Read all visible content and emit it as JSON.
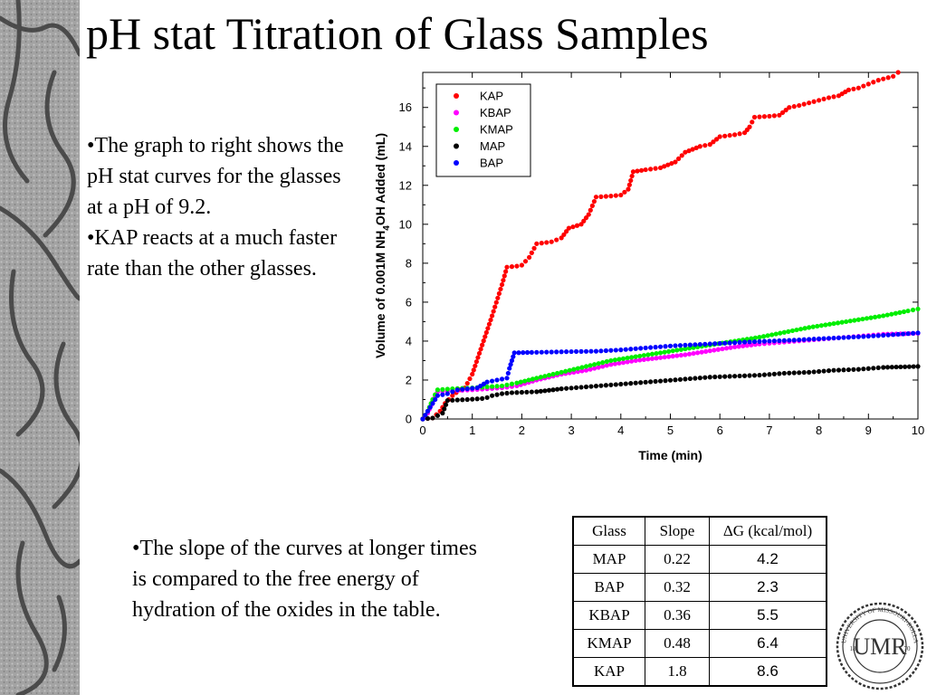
{
  "title": "pH stat Titration of Glass Samples",
  "bullets_left": [
    "The graph to right shows the pH stat curves for the glasses at a pH of 9.2.",
    "KAP reacts at a much faster rate than the other glasses."
  ],
  "bullet_bottom": "The slope of the curves at longer times is compared to the free energy of hydration of the oxides in the table.",
  "table": {
    "headers": [
      "Glass",
      "Slope",
      "ΔG (kcal/mol)"
    ],
    "rows": [
      [
        "MAP",
        "0.22",
        "4.2"
      ],
      [
        "BAP",
        "0.32",
        "2.3"
      ],
      [
        "KBAP",
        "0.36",
        "5.5"
      ],
      [
        "KMAP",
        "0.48",
        "6.4"
      ],
      [
        "KAP",
        "1.8",
        "8.6"
      ]
    ]
  },
  "chart_data": {
    "type": "scatter",
    "xlabel": "Time (min)",
    "ylabel_parts": [
      "Volume of 0.001M NH",
      "4",
      "OH Added (mL)"
    ],
    "xlim": [
      0,
      10
    ],
    "ylim": [
      0,
      17.8
    ],
    "xticks": [
      0,
      1,
      2,
      3,
      4,
      5,
      6,
      7,
      8,
      9,
      10
    ],
    "yticks": [
      0,
      2,
      4,
      6,
      8,
      10,
      12,
      14,
      16
    ],
    "grid": false,
    "legend_position": "top-left",
    "series": [
      {
        "name": "KAP",
        "color": "#ff0000",
        "points": [
          [
            0,
            0
          ],
          [
            0.2,
            0.05
          ],
          [
            0.35,
            0.4
          ],
          [
            0.45,
            0.8
          ],
          [
            0.6,
            1.2
          ],
          [
            0.75,
            1.5
          ],
          [
            0.85,
            1.6
          ],
          [
            1.0,
            2.3
          ],
          [
            1.2,
            3.8
          ],
          [
            1.4,
            5.3
          ],
          [
            1.6,
            6.9
          ],
          [
            1.7,
            7.8
          ],
          [
            1.9,
            7.85
          ],
          [
            2.0,
            7.9
          ],
          [
            2.15,
            8.3
          ],
          [
            2.3,
            9.0
          ],
          [
            2.6,
            9.1
          ],
          [
            2.8,
            9.3
          ],
          [
            2.95,
            9.8
          ],
          [
            3.2,
            10.0
          ],
          [
            3.35,
            10.5
          ],
          [
            3.5,
            11.4
          ],
          [
            3.8,
            11.45
          ],
          [
            4.0,
            11.5
          ],
          [
            4.15,
            11.8
          ],
          [
            4.25,
            12.7
          ],
          [
            4.5,
            12.8
          ],
          [
            4.8,
            12.9
          ],
          [
            5.1,
            13.2
          ],
          [
            5.3,
            13.7
          ],
          [
            5.6,
            14.0
          ],
          [
            5.8,
            14.1
          ],
          [
            6.0,
            14.5
          ],
          [
            6.3,
            14.6
          ],
          [
            6.5,
            14.7
          ],
          [
            6.6,
            15.0
          ],
          [
            6.7,
            15.5
          ],
          [
            7.0,
            15.55
          ],
          [
            7.2,
            15.6
          ],
          [
            7.4,
            16.0
          ],
          [
            7.6,
            16.1
          ],
          [
            7.9,
            16.3
          ],
          [
            8.2,
            16.5
          ],
          [
            8.4,
            16.6
          ],
          [
            8.6,
            16.9
          ],
          [
            8.8,
            17.0
          ],
          [
            9.0,
            17.2
          ],
          [
            9.2,
            17.4
          ],
          [
            9.5,
            17.6
          ],
          [
            9.6,
            17.8
          ]
        ]
      },
      {
        "name": "KBAP",
        "color": "#ff00ff",
        "points": [
          [
            0,
            0
          ],
          [
            0.1,
            0.3
          ],
          [
            0.2,
            0.9
          ],
          [
            0.3,
            1.4
          ],
          [
            0.6,
            1.45
          ],
          [
            1.0,
            1.5
          ],
          [
            1.3,
            1.55
          ],
          [
            1.6,
            1.6
          ],
          [
            1.9,
            1.7
          ],
          [
            2.3,
            2.0
          ],
          [
            2.8,
            2.3
          ],
          [
            3.3,
            2.5
          ],
          [
            3.8,
            2.8
          ],
          [
            4.3,
            3.0
          ],
          [
            4.8,
            3.15
          ],
          [
            5.3,
            3.3
          ],
          [
            5.8,
            3.5
          ],
          [
            6.3,
            3.7
          ],
          [
            6.8,
            3.85
          ],
          [
            7.3,
            3.95
          ],
          [
            7.8,
            4.05
          ],
          [
            8.3,
            4.15
          ],
          [
            8.8,
            4.25
          ],
          [
            9.3,
            4.35
          ],
          [
            10,
            4.4
          ]
        ]
      },
      {
        "name": "KMAP",
        "color": "#00ee00",
        "points": [
          [
            0,
            0
          ],
          [
            0.1,
            0.4
          ],
          [
            0.2,
            1.0
          ],
          [
            0.3,
            1.5
          ],
          [
            0.6,
            1.55
          ],
          [
            1.0,
            1.6
          ],
          [
            1.3,
            1.65
          ],
          [
            1.6,
            1.7
          ],
          [
            1.9,
            1.85
          ],
          [
            2.3,
            2.1
          ],
          [
            2.8,
            2.4
          ],
          [
            3.3,
            2.7
          ],
          [
            3.8,
            3.0
          ],
          [
            4.3,
            3.2
          ],
          [
            4.8,
            3.4
          ],
          [
            5.3,
            3.6
          ],
          [
            5.8,
            3.8
          ],
          [
            6.3,
            4.0
          ],
          [
            6.8,
            4.2
          ],
          [
            7.3,
            4.45
          ],
          [
            7.8,
            4.7
          ],
          [
            8.3,
            4.9
          ],
          [
            8.8,
            5.1
          ],
          [
            9.3,
            5.3
          ],
          [
            9.8,
            5.55
          ],
          [
            10,
            5.65
          ]
        ]
      },
      {
        "name": "MAP",
        "color": "#000000",
        "points": [
          [
            0,
            0
          ],
          [
            0.2,
            0.05
          ],
          [
            0.4,
            0.3
          ],
          [
            0.5,
            0.95
          ],
          [
            0.9,
            1.0
          ],
          [
            1.2,
            1.05
          ],
          [
            1.3,
            1.1
          ],
          [
            1.4,
            1.2
          ],
          [
            1.6,
            1.3
          ],
          [
            1.8,
            1.35
          ],
          [
            2.3,
            1.4
          ],
          [
            2.8,
            1.55
          ],
          [
            3.3,
            1.65
          ],
          [
            3.8,
            1.75
          ],
          [
            4.3,
            1.85
          ],
          [
            4.8,
            1.95
          ],
          [
            5.3,
            2.05
          ],
          [
            5.8,
            2.15
          ],
          [
            6.3,
            2.2
          ],
          [
            6.8,
            2.25
          ],
          [
            7.3,
            2.35
          ],
          [
            7.8,
            2.4
          ],
          [
            8.3,
            2.5
          ],
          [
            8.8,
            2.55
          ],
          [
            9.3,
            2.65
          ],
          [
            10,
            2.7
          ]
        ]
      },
      {
        "name": "BAP",
        "color": "#0000ff",
        "points": [
          [
            0,
            0
          ],
          [
            0.1,
            0.4
          ],
          [
            0.2,
            0.8
          ],
          [
            0.3,
            1.2
          ],
          [
            0.5,
            1.3
          ],
          [
            0.7,
            1.5
          ],
          [
            0.9,
            1.55
          ],
          [
            1.1,
            1.6
          ],
          [
            1.3,
            1.9
          ],
          [
            1.5,
            2.0
          ],
          [
            1.7,
            2.1
          ],
          [
            1.75,
            2.6
          ],
          [
            1.85,
            3.4
          ],
          [
            2.2,
            3.42
          ],
          [
            2.6,
            3.44
          ],
          [
            3.0,
            3.46
          ],
          [
            3.5,
            3.48
          ],
          [
            4.0,
            3.55
          ],
          [
            4.5,
            3.65
          ],
          [
            5.0,
            3.75
          ],
          [
            5.5,
            3.82
          ],
          [
            6.0,
            3.88
          ],
          [
            6.5,
            3.95
          ],
          [
            7.0,
            4.0
          ],
          [
            7.5,
            4.05
          ],
          [
            8.0,
            4.12
          ],
          [
            8.5,
            4.18
          ],
          [
            9.0,
            4.25
          ],
          [
            9.5,
            4.33
          ],
          [
            10,
            4.42
          ]
        ]
      }
    ]
  },
  "colors": {
    "stripe_base": "#9a9a9a",
    "stripe_crack": "#3c3c3c"
  },
  "seal": {
    "text_top": "UNIVERSITY OF MISSOURI-ROLLA",
    "monogram": "UMR",
    "year_left": "18",
    "year_right": "70"
  }
}
